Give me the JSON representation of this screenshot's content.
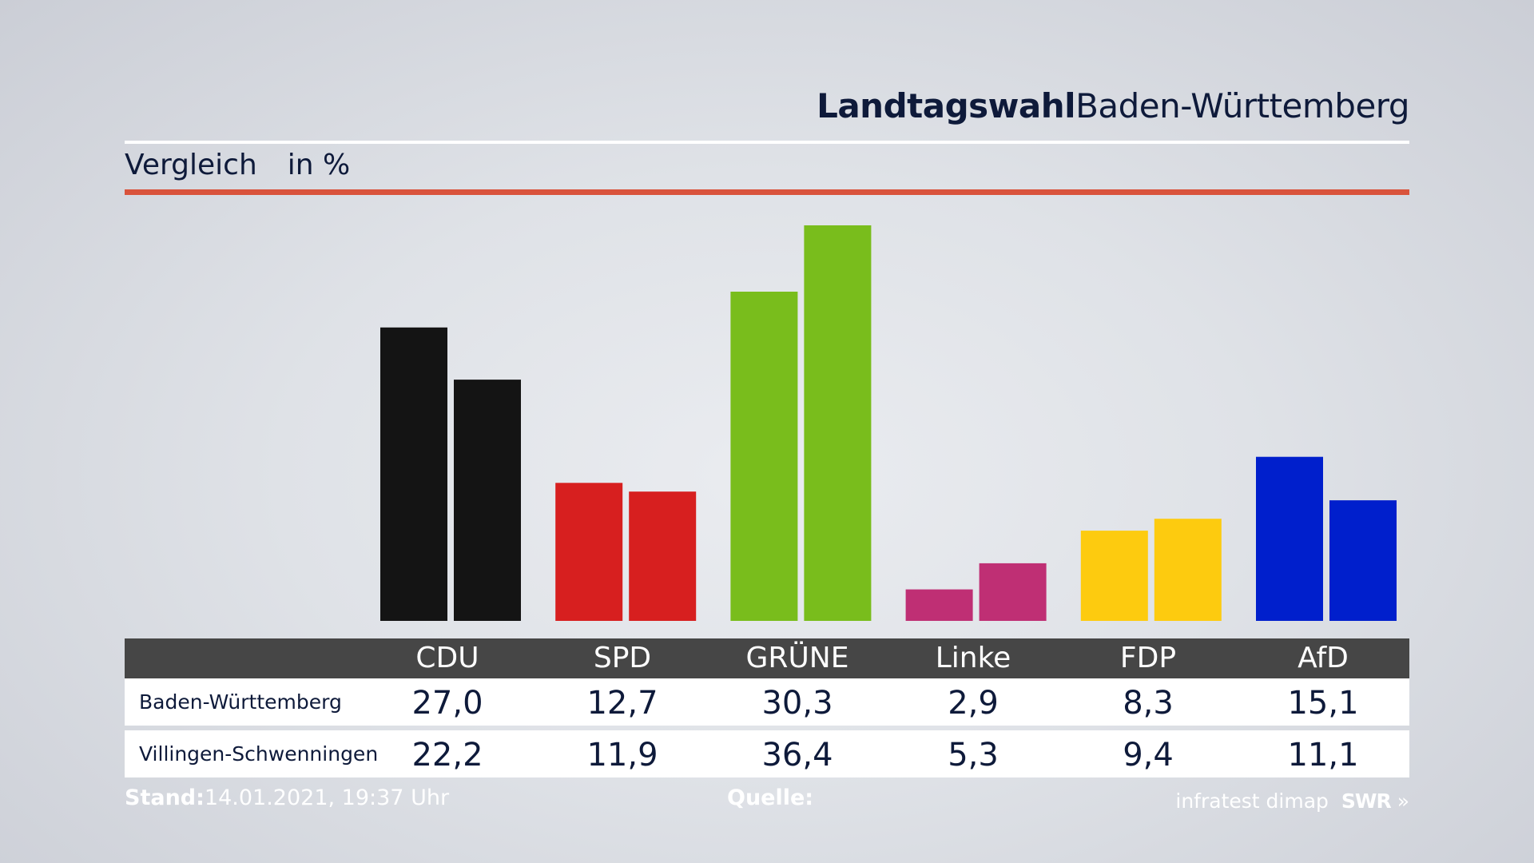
{
  "header": {
    "title_bold": "Landtagswahl",
    "title_regular": "Baden-Württemberg",
    "subtitle": "Vergleich",
    "unit": "in %"
  },
  "colors": {
    "accent_rule": "#d9533c",
    "table_header_bg": "#464646",
    "text": "#0e1a3a"
  },
  "chart_data": {
    "type": "bar",
    "title": "Landtagswahl Baden-Württemberg",
    "subtitle": "Vergleich",
    "ylabel": "in %",
    "categories": [
      "CDU",
      "SPD",
      "GRÜNE",
      "Linke",
      "FDP",
      "AfD"
    ],
    "category_colors": [
      "#141414",
      "#d71f1f",
      "#79bd1c",
      "#bf2f74",
      "#fdcb0f",
      "#001fcc"
    ],
    "series": [
      {
        "name": "Baden-Württemberg",
        "values": [
          27.0,
          12.7,
          30.3,
          2.9,
          8.3,
          15.1
        ]
      },
      {
        "name": "Villingen-Schwenningen",
        "values": [
          22.2,
          11.9,
          36.4,
          5.3,
          9.4,
          11.1
        ]
      }
    ],
    "ylim": [
      0,
      36.4
    ],
    "grid": false,
    "legend": "table-below"
  },
  "table": {
    "columns": [
      "CDU",
      "SPD",
      "GRÜNE",
      "Linke",
      "FDP",
      "AfD"
    ],
    "rows": [
      {
        "label": "Baden-Württemberg",
        "values": [
          "27,0",
          "12,7",
          "30,3",
          "2,9",
          "8,3",
          "15,1"
        ]
      },
      {
        "label": "Villingen-Schwenningen",
        "values": [
          "22,2",
          "11,9",
          "36,4",
          "5,3",
          "9,4",
          "11,1"
        ]
      }
    ]
  },
  "footer": {
    "stand_label": "Stand:",
    "stand_value": "14.01.2021, 19:37 Uhr",
    "quelle_label": "Quelle:",
    "source_name": "infratest dimap",
    "brand": "SWR"
  }
}
